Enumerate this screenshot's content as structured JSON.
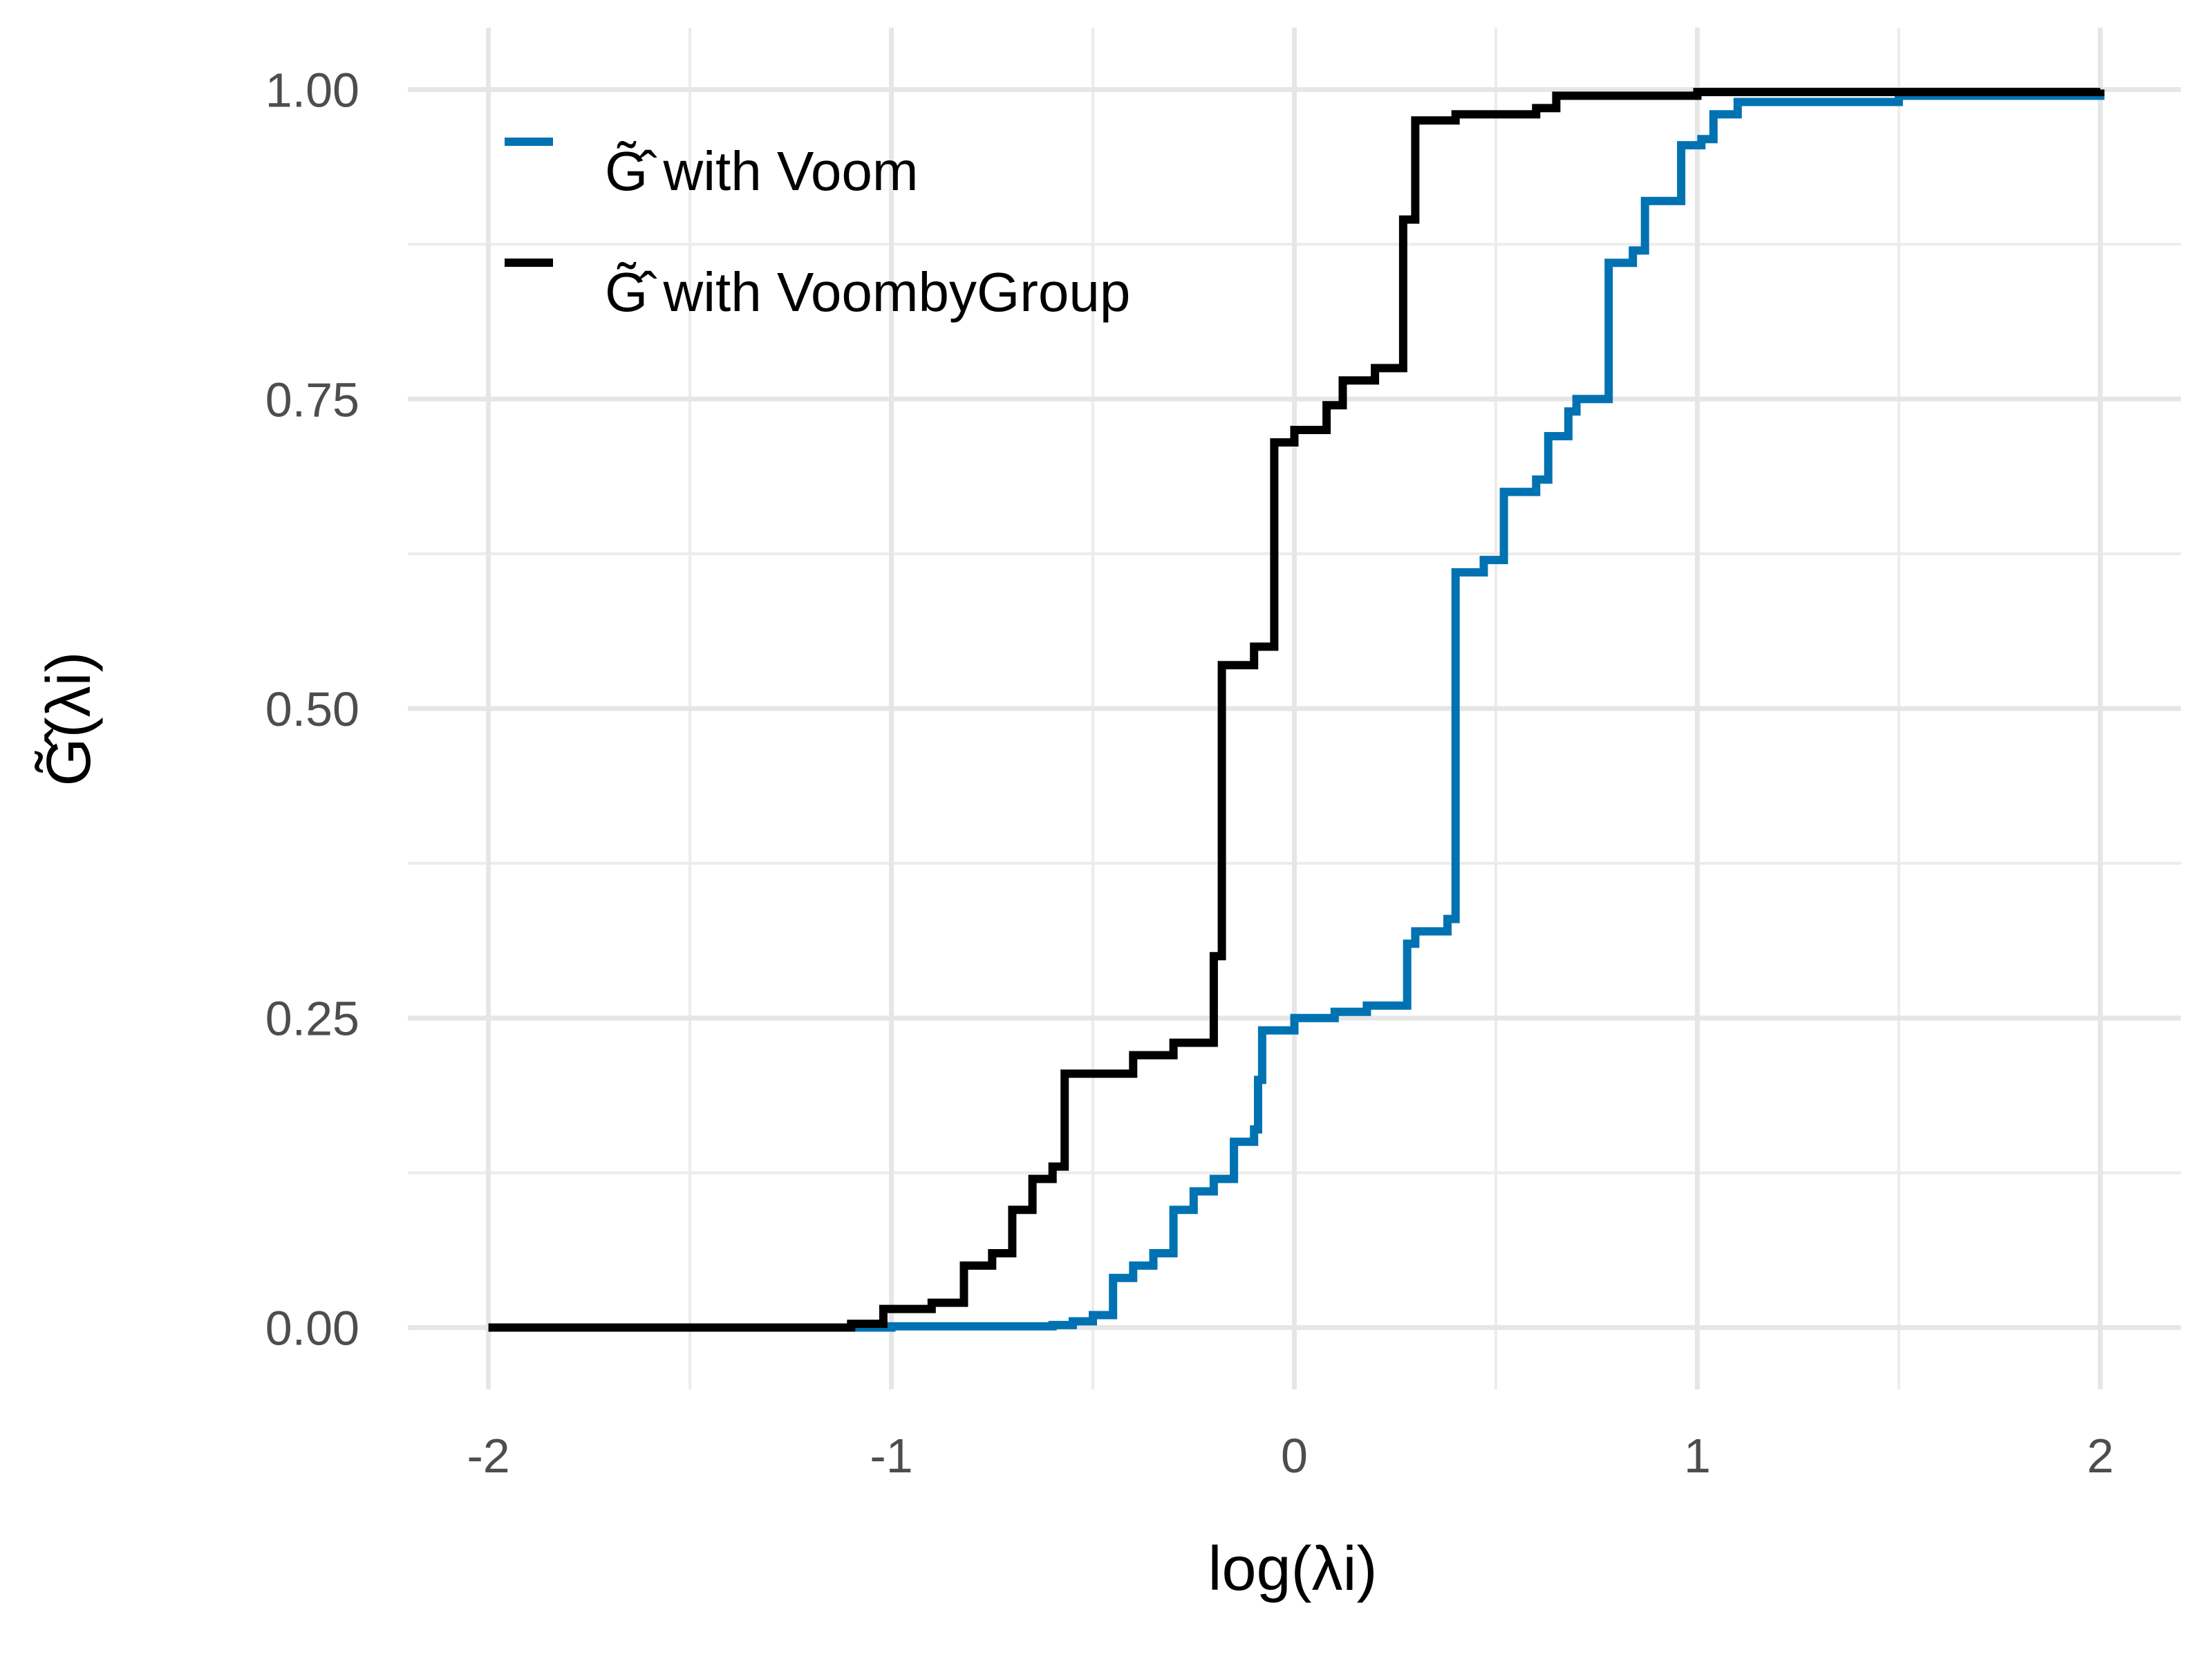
{
  "chart_data": {
    "type": "line",
    "title": "",
    "xlabel": "log(λi)",
    "ylabel": "G̃̂(λi)",
    "xlim": [
      -2.2,
      2.2
    ],
    "ylim": [
      -0.05,
      1.05
    ],
    "x_ticks": [
      -2,
      -1,
      0,
      1,
      2
    ],
    "x_tick_labels": [
      "-2",
      "-1",
      "0",
      "1",
      "2"
    ],
    "y_ticks": [
      0,
      0.25,
      0.5,
      0.75,
      1
    ],
    "y_tick_labels": [
      "0.00",
      "0.25",
      "0.50",
      "0.75",
      "1.00"
    ],
    "grid": true,
    "legend_position": "top-left",
    "series": [
      {
        "name": "G̃̂ with Voom",
        "color": "#0072B2",
        "step": true,
        "x": [
          -2,
          -1.0,
          -0.6,
          -0.55,
          -0.5,
          -0.45,
          -0.4,
          -0.35,
          -0.3,
          -0.25,
          -0.2,
          -0.15,
          -0.1,
          -0.09,
          -0.08,
          0.0,
          0.1,
          0.18,
          0.28,
          0.3,
          0.38,
          0.4,
          0.47,
          0.52,
          0.6,
          0.63,
          0.68,
          0.7,
          0.78,
          0.84,
          0.87,
          0.96,
          1.01,
          1.04,
          1.1,
          1.5,
          2.0
        ],
        "y": [
          0.0,
          0.001,
          0.002,
          0.005,
          0.01,
          0.04,
          0.05,
          0.06,
          0.095,
          0.11,
          0.12,
          0.15,
          0.16,
          0.2,
          0.24,
          0.25,
          0.255,
          0.26,
          0.31,
          0.32,
          0.33,
          0.61,
          0.62,
          0.675,
          0.685,
          0.72,
          0.74,
          0.75,
          0.86,
          0.87,
          0.91,
          0.955,
          0.96,
          0.98,
          0.99,
          0.995,
          1.0
        ]
      },
      {
        "name": "G̃̂ with VoombyGroup",
        "color": "#000000",
        "step": true,
        "x": [
          -2,
          -1.1,
          -1.02,
          -0.9,
          -0.82,
          -0.75,
          -0.7,
          -0.65,
          -0.6,
          -0.57,
          -0.4,
          -0.3,
          -0.2,
          -0.18,
          -0.1,
          -0.05,
          0.0,
          0.08,
          0.12,
          0.2,
          0.27,
          0.3,
          0.4,
          0.6,
          0.65,
          1.0,
          2.0
        ],
        "y": [
          0.0,
          0.003,
          0.015,
          0.02,
          0.05,
          0.06,
          0.095,
          0.12,
          0.13,
          0.205,
          0.22,
          0.23,
          0.3,
          0.535,
          0.55,
          0.715,
          0.725,
          0.745,
          0.765,
          0.775,
          0.895,
          0.975,
          0.98,
          0.985,
          0.995,
          0.998,
          1.0
        ]
      }
    ]
  }
}
